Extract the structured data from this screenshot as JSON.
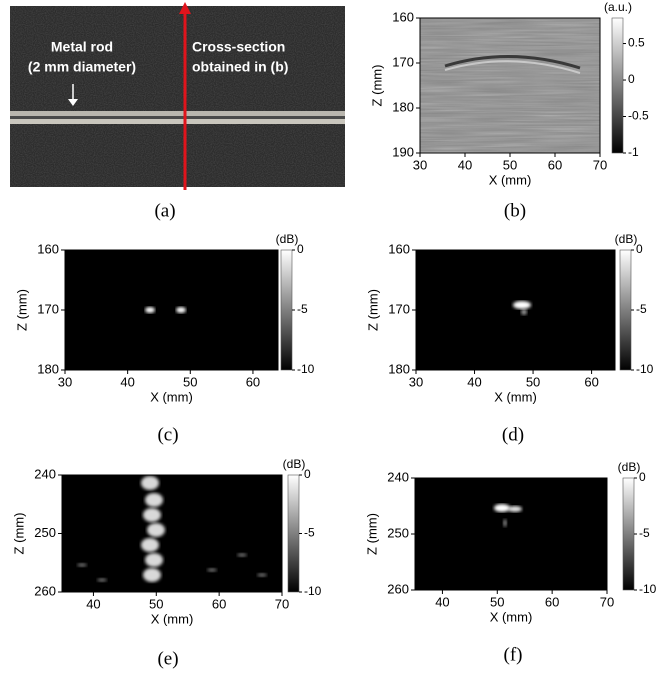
{
  "panels": [
    {
      "label": "(a)",
      "annotations": [
        "Metal rod",
        "(2 mm diameter)",
        "Cross-section",
        "obtained  in (b)"
      ]
    },
    {
      "label": "(b)",
      "x_label": "X (mm)",
      "y_label": "Z (mm)",
      "xlim": [
        30,
        70
      ],
      "xticks": [
        30,
        40,
        50,
        60,
        70
      ],
      "ylim": [
        160,
        190
      ],
      "yticks": [
        160,
        170,
        180,
        190
      ],
      "colorbar_label": "(a.u.)",
      "clim": [
        -1,
        0.85
      ],
      "cticks": [
        0.5,
        0,
        -0.5,
        -1
      ]
    },
    {
      "label": "(c)",
      "x_label": "X (mm)",
      "y_label": "Z (mm)",
      "xlim": [
        30,
        64
      ],
      "xticks": [
        30,
        40,
        50,
        60
      ],
      "ylim": [
        160,
        180
      ],
      "yticks": [
        160,
        170,
        180
      ],
      "colorbar_label": "(dB)",
      "clim": [
        -10,
        0
      ],
      "cticks": [
        0,
        -5,
        -10
      ]
    },
    {
      "label": "(d)",
      "x_label": "X (mm)",
      "y_label": "Z (mm)",
      "xlim": [
        30,
        64
      ],
      "xticks": [
        30,
        40,
        50,
        60
      ],
      "ylim": [
        160,
        180
      ],
      "yticks": [
        160,
        170,
        180
      ],
      "colorbar_label": "(dB)",
      "clim": [
        -10,
        0
      ],
      "cticks": [
        0,
        -5,
        -10
      ]
    },
    {
      "label": "(e)",
      "x_label": "X (mm)",
      "y_label": "Z (mm)",
      "xlim": [
        35,
        70
      ],
      "xticks": [
        40,
        50,
        60,
        70
      ],
      "ylim": [
        240,
        260
      ],
      "yticks": [
        240,
        250,
        260
      ],
      "colorbar_label": "(dB)",
      "clim": [
        -10,
        0
      ],
      "cticks": [
        0,
        -5,
        -10
      ]
    },
    {
      "label": "(f)",
      "x_label": "X (mm)",
      "y_label": "Z (mm)",
      "xlim": [
        35,
        70
      ],
      "xticks": [
        40,
        50,
        60,
        70
      ],
      "ylim": [
        240,
        260
      ],
      "yticks": [
        240,
        250,
        260
      ],
      "colorbar_label": "(dB)",
      "clim": [
        -10,
        0
      ],
      "cticks": [
        0,
        -5,
        -10
      ]
    }
  ]
}
